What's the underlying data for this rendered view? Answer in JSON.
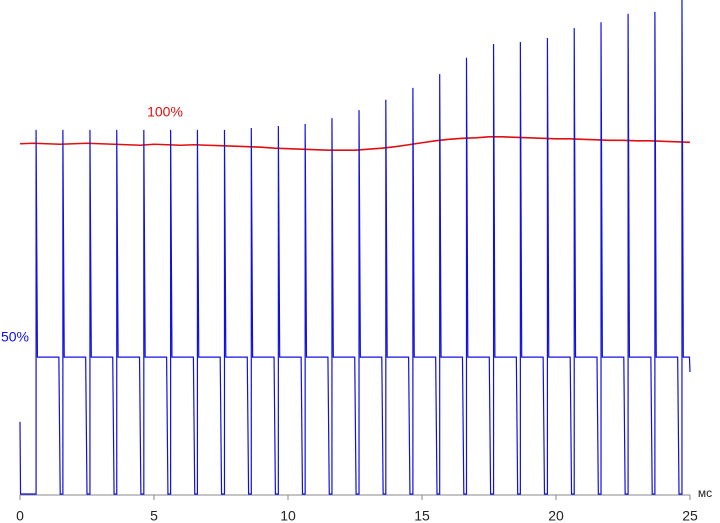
{
  "chart_data": {
    "type": "line",
    "xlabel": "мс",
    "xlim": [
      0,
      25
    ],
    "xticks": [
      0,
      5,
      10,
      15,
      20,
      25
    ],
    "ylim": [
      0,
      100
    ],
    "series": [
      {
        "name": "100%",
        "color": "#e01010",
        "x": [
          0,
          0.5,
          1,
          1.5,
          2,
          2.5,
          3,
          3.5,
          4,
          4.5,
          5,
          5.5,
          6,
          6.5,
          7,
          7.5,
          8,
          8.5,
          9,
          9.5,
          10,
          10.5,
          11,
          11.5,
          12,
          12.5,
          13,
          13.5,
          14,
          14.5,
          15,
          15.5,
          16,
          16.5,
          17,
          17.5,
          18,
          18.5,
          19,
          19.5,
          20,
          20.5,
          21,
          21.5,
          22,
          22.5,
          23,
          23.5,
          24,
          24.5,
          25
        ],
        "values": [
          70.9,
          71.0,
          70.9,
          70.8,
          70.9,
          71.0,
          70.9,
          70.8,
          70.7,
          70.6,
          70.8,
          70.7,
          70.6,
          70.7,
          70.6,
          70.5,
          70.4,
          70.3,
          70.2,
          70.0,
          69.9,
          69.8,
          69.7,
          69.6,
          69.6,
          69.6,
          69.8,
          70.0,
          70.3,
          70.7,
          71.1,
          71.5,
          71.8,
          72.0,
          72.1,
          72.3,
          72.3,
          72.2,
          72.1,
          72.0,
          71.9,
          71.9,
          71.8,
          71.7,
          71.6,
          71.6,
          71.5,
          71.5,
          71.4,
          71.3,
          71.2
        ]
      },
      {
        "name": "50%",
        "color": "#1010e0",
        "x": [
          0,
          0.02,
          0.6,
          0.6,
          0.65,
          1.45,
          1.5,
          1.6,
          1.6,
          1.65,
          2.45,
          2.5,
          2.61,
          2.61,
          2.66,
          3.46,
          3.51,
          3.61,
          3.61,
          3.66,
          4.46,
          4.51,
          4.62,
          4.62,
          4.67,
          5.47,
          5.52,
          5.62,
          5.62,
          5.67,
          6.47,
          6.52,
          6.62,
          6.62,
          6.67,
          7.47,
          7.52,
          7.63,
          7.63,
          7.68,
          8.48,
          8.53,
          8.63,
          8.63,
          8.68,
          9.48,
          9.53,
          9.64,
          9.64,
          9.69,
          10.49,
          10.54,
          10.64,
          10.64,
          10.69,
          11.49,
          11.54,
          11.64,
          11.64,
          11.69,
          12.49,
          12.54,
          12.65,
          12.65,
          12.7,
          13.5,
          13.55,
          13.65,
          13.65,
          13.7,
          14.5,
          14.55,
          14.66,
          14.66,
          14.71,
          15.51,
          15.56,
          15.66,
          15.66,
          15.71,
          16.51,
          16.56,
          16.66,
          16.66,
          16.71,
          17.51,
          17.56,
          17.67,
          17.67,
          17.72,
          18.52,
          18.57,
          18.67,
          18.67,
          18.72,
          19.52,
          19.57,
          19.68,
          19.68,
          19.73,
          20.53,
          20.58,
          20.68,
          20.68,
          20.73,
          21.53,
          21.58,
          21.68,
          21.68,
          21.73,
          22.53,
          22.58,
          22.69,
          22.69,
          22.74,
          23.54,
          23.59,
          23.69,
          23.69,
          23.74,
          24.54,
          24.59,
          24.7,
          24.7,
          24.75,
          24.98,
          25.0
        ],
        "values": [
          14.6,
          0,
          0,
          73.7,
          27.7,
          27.7,
          0,
          0,
          73.7,
          27.7,
          27.7,
          0,
          0,
          73.7,
          27.7,
          27.7,
          0,
          0,
          73.7,
          27.7,
          27.7,
          0,
          0,
          73.7,
          27.7,
          27.7,
          0,
          0,
          73.7,
          27.7,
          27.7,
          0,
          0,
          73.7,
          27.7,
          27.7,
          0,
          0,
          73.7,
          27.7,
          27.7,
          0,
          0,
          74.1,
          27.7,
          27.7,
          0,
          0,
          74.5,
          27.7,
          27.7,
          0,
          0,
          74.9,
          27.7,
          27.7,
          0,
          0,
          76.1,
          27.7,
          27.7,
          0,
          0,
          77.7,
          27.7,
          27.7,
          0,
          0,
          79.8,
          27.7,
          27.7,
          0,
          0,
          82.2,
          27.7,
          27.7,
          0,
          0,
          85.0,
          27.7,
          27.7,
          0,
          0,
          88.3,
          27.7,
          27.7,
          0,
          0,
          91.1,
          27.7,
          27.7,
          0,
          0,
          91.5,
          27.7,
          27.7,
          0,
          0,
          92.3,
          27.7,
          27.7,
          0,
          0,
          94.3,
          27.7,
          27.7,
          0,
          0,
          95.5,
          27.7,
          27.7,
          0,
          0,
          97.2,
          27.7,
          27.7,
          0,
          0,
          97.6,
          27.7,
          27.7,
          0,
          0,
          100,
          27.7,
          27.7,
          24.7
        ]
      }
    ]
  }
}
